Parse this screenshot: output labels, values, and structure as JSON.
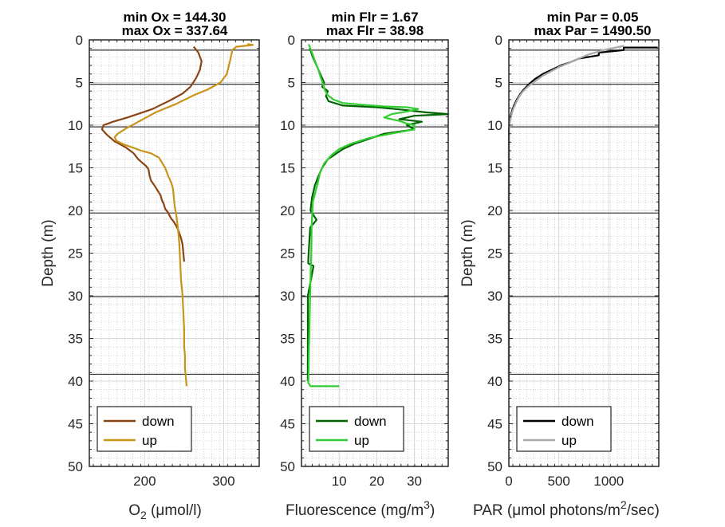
{
  "chart_data": [
    {
      "type": "line",
      "title_lines": [
        "min Ox = 144.30",
        "max Ox = 337.64"
      ],
      "xlabel": "O",
      "xlabel_sub": "2",
      "xlabel_tail": " (μmol/l)",
      "ylabel": "Depth (m)",
      "xlim": [
        130,
        345
      ],
      "ylim": [
        0,
        50
      ],
      "y_reversed": true,
      "xticks": [
        200,
        300
      ],
      "yticks": [
        0,
        5,
        10,
        15,
        20,
        25,
        30,
        35,
        40,
        45,
        50
      ],
      "hlines": [
        1.2,
        5.2,
        10.2,
        20.3,
        30.1,
        39.2
      ],
      "grid": true,
      "legend": "bottom-left",
      "series": [
        {
          "name": "down",
          "color": "#8B4513",
          "x": [
            262,
            268,
            272,
            270,
            265,
            258,
            248,
            232,
            210,
            178,
            160,
            148,
            146,
            152,
            162,
            176,
            186,
            192,
            198,
            202,
            205,
            206,
            208,
            212,
            216,
            220,
            222,
            224,
            226,
            230,
            232,
            234,
            236,
            238,
            240,
            242,
            244,
            246,
            248,
            250
          ],
          "y": [
            0.8,
            1.5,
            2.5,
            3.5,
            4.5,
            5.5,
            6.3,
            7.1,
            8.1,
            9.1,
            9.6,
            10.0,
            10.5,
            11.1,
            11.9,
            12.6,
            13.3,
            14.0,
            14.5,
            14.8,
            15.2,
            15.8,
            16.5,
            17.0,
            17.6,
            18.2,
            18.8,
            19.2,
            19.8,
            20.3,
            20.7,
            21.0,
            21.2,
            21.5,
            21.8,
            22.2,
            22.7,
            23.2,
            24.0,
            26.0
          ]
        },
        {
          "name": "up",
          "color": "#C8941A",
          "x": [
            330,
            337,
            316,
            311,
            308,
            304,
            296,
            280,
            262,
            240,
            214,
            194,
            176,
            166,
            162,
            164,
            172,
            184,
            196,
            208,
            218,
            226,
            230,
            234,
            236,
            237,
            238,
            240,
            242,
            244,
            245,
            246,
            248,
            249,
            250,
            250,
            251,
            251,
            252,
            253
          ],
          "y": [
            0.5,
            0.6,
            0.8,
            1.2,
            2.5,
            4.0,
            5.0,
            5.8,
            6.5,
            7.5,
            8.5,
            9.5,
            10.4,
            11.0,
            11.4,
            11.8,
            12.2,
            12.6,
            13.0,
            13.3,
            13.8,
            15.0,
            16.0,
            16.8,
            17.5,
            18.5,
            19.5,
            20.5,
            22.0,
            24.0,
            26.0,
            28.0,
            30.0,
            32.0,
            34.0,
            36.0,
            37.0,
            38.5,
            39.5,
            40.6
          ]
        }
      ]
    },
    {
      "type": "line",
      "title_lines": [
        "min Flr = 1.67",
        "max Flr = 38.98"
      ],
      "xlabel": "Fluorescence (mg/m",
      "xlabel_sup": "3",
      "xlabel_tail": ")",
      "ylabel": "",
      "xlim": [
        0,
        39
      ],
      "ylim": [
        0,
        50
      ],
      "y_reversed": true,
      "xticks": [
        10,
        20,
        30
      ],
      "yticks": [
        0,
        5,
        10,
        15,
        20,
        25,
        30,
        35,
        40,
        45,
        50
      ],
      "hlines": [
        1.2,
        5.2,
        10.2,
        20.3,
        30.1,
        39.2
      ],
      "grid": true,
      "legend": "bottom-left",
      "series": [
        {
          "name": "down",
          "color": "#006400",
          "x": [
            2.2,
            3.0,
            4.0,
            5.0,
            6.0,
            5.5,
            7.0,
            6.5,
            7.2,
            11.0,
            20.0,
            27.0,
            33.0,
            38.98,
            30.0,
            26.0,
            32.0,
            28.0,
            30.0,
            22.0,
            18.0,
            14.0,
            11.0,
            9.0,
            7.0,
            5.5,
            4.5,
            3.6,
            2.8,
            2.4,
            4.0,
            2.3,
            2.1,
            1.9,
            1.8,
            1.8,
            3.2,
            1.7,
            1.7,
            1.67
          ],
          "y": [
            1.0,
            2.0,
            3.0,
            4.0,
            5.0,
            5.5,
            6.0,
            6.6,
            7.2,
            7.7,
            7.9,
            8.2,
            8.5,
            8.7,
            8.9,
            9.3,
            9.6,
            10.0,
            10.5,
            11.0,
            11.6,
            12.2,
            12.8,
            13.4,
            14.0,
            15.0,
            16.0,
            17.0,
            18.5,
            20.0,
            21.1,
            22.0,
            23.5,
            25.0,
            25.8,
            26.2,
            26.5,
            30.0,
            35.0,
            40.0
          ]
        },
        {
          "name": "up",
          "color": "#32CD32",
          "x": [
            1.9,
            2.8,
            3.6,
            4.5,
            5.2,
            5.8,
            6.2,
            7.0,
            8.5,
            11.0,
            16.0,
            22.0,
            28.0,
            31.0,
            28.0,
            24.0,
            22.0,
            26.0,
            28.0,
            30.0,
            30.0,
            25.0,
            18.0,
            13.0,
            10.0,
            8.0,
            6.0,
            5.0,
            4.2,
            3.0,
            2.7,
            2.6,
            2.4,
            2.2,
            2.0,
            1.9,
            1.8,
            2.4,
            6.0,
            10.0
          ],
          "y": [
            0.5,
            1.5,
            2.5,
            3.5,
            4.5,
            5.3,
            5.9,
            6.5,
            7.0,
            7.4,
            7.6,
            7.8,
            7.9,
            8.1,
            8.4,
            8.7,
            9.1,
            9.5,
            9.8,
            10.0,
            10.5,
            10.9,
            11.5,
            12.2,
            12.8,
            13.5,
            14.5,
            15.5,
            17.0,
            19.0,
            22.0,
            25.0,
            28.0,
            32.0,
            36.0,
            39.0,
            40.2,
            40.6,
            40.6,
            40.6
          ]
        }
      ]
    },
    {
      "type": "line",
      "title_lines": [
        "min Par = 0.05",
        "max Par = 1490.50"
      ],
      "xlabel": "PAR (μmol photons/m",
      "xlabel_sup": "2",
      "xlabel_tail": "/sec)",
      "ylabel": "Depth (m)",
      "xlim": [
        0,
        1500
      ],
      "ylim": [
        0,
        50
      ],
      "y_reversed": true,
      "xticks": [
        0,
        500,
        1000
      ],
      "yticks": [
        0,
        5,
        10,
        15,
        20,
        25,
        30,
        35,
        40,
        45,
        50
      ],
      "hlines": [
        1.2,
        5.2,
        10.2,
        20.3,
        30.1,
        39.2
      ],
      "grid": true,
      "legend": "bottom-left",
      "series": [
        {
          "name": "down",
          "color": "#000000",
          "x": [
            1490,
            1150,
            1150,
            900,
            900,
            700,
            620,
            520,
            430,
            340,
            260,
            200,
            150,
            110,
            80,
            55,
            35,
            20,
            10,
            4,
            1,
            0.3,
            0.1,
            0.05
          ],
          "y": [
            0.9,
            0.9,
            1.2,
            1.5,
            1.8,
            2.2,
            2.6,
            3.0,
            3.5,
            4.0,
            4.6,
            5.2,
            5.8,
            6.4,
            7.0,
            7.6,
            8.2,
            8.8,
            9.4,
            10.0,
            11.0,
            13.0,
            20.0,
            40.0
          ]
        },
        {
          "name": "up",
          "color": "#A9A9A9",
          "x": [
            1150,
            950,
            800,
            700,
            600,
            500,
            420,
            340,
            280,
            220,
            170,
            130,
            95,
            70,
            48,
            30,
            18,
            9,
            4,
            1.5,
            0.5,
            0.1,
            0.05
          ],
          "y": [
            0.7,
            1.2,
            1.7,
            2.2,
            2.7,
            3.2,
            3.7,
            4.2,
            4.7,
            5.2,
            5.7,
            6.2,
            6.8,
            7.4,
            8.0,
            8.6,
            9.2,
            9.8,
            10.4,
            11.5,
            13.0,
            20.0,
            40.0
          ]
        }
      ]
    }
  ]
}
